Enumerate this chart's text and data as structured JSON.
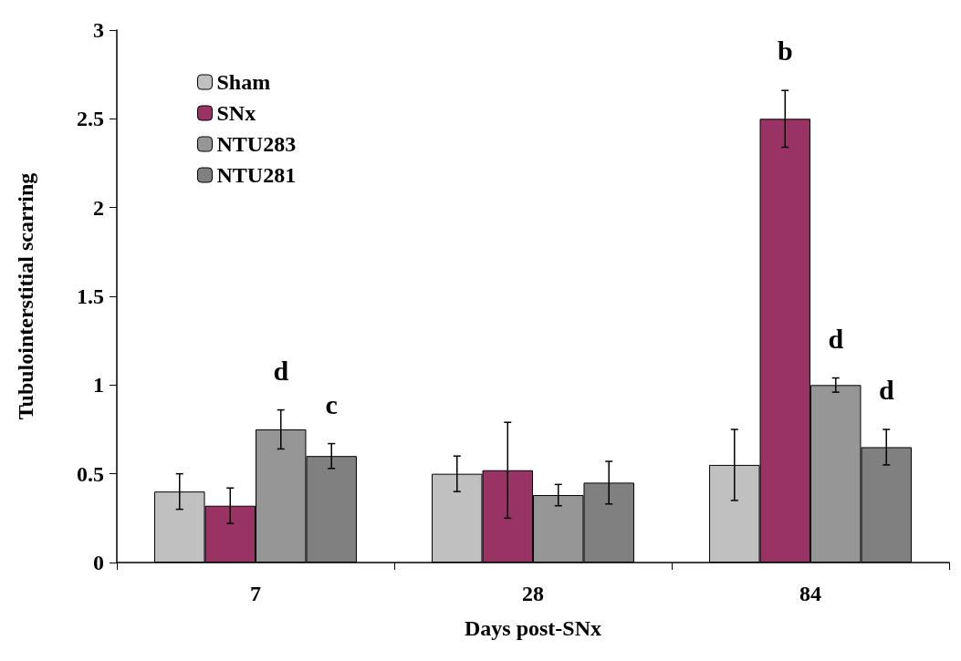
{
  "chart_data": {
    "type": "bar",
    "xlabel": "Days post-SNx",
    "ylabel": "Tubulointerstitial scarring",
    "categories": [
      "7",
      "28",
      "84"
    ],
    "series": [
      {
        "name": "Sham",
        "color": "#c0c0c0",
        "values": [
          0.4,
          0.5,
          0.55
        ],
        "errors": [
          0.1,
          0.1,
          0.2
        ]
      },
      {
        "name": "SNx",
        "color": "#993366",
        "values": [
          0.32,
          0.52,
          2.5
        ],
        "errors": [
          0.1,
          0.27,
          0.16
        ],
        "value_labels": [
          null,
          null,
          "b"
        ]
      },
      {
        "name": "NTU283",
        "color": "#969696",
        "values": [
          0.75,
          0.38,
          1.0
        ],
        "errors": [
          0.11,
          0.06,
          0.04
        ],
        "value_labels": [
          "d",
          null,
          "d"
        ]
      },
      {
        "name": "NTU281",
        "color": "#808080",
        "values": [
          0.6,
          0.45,
          0.65
        ],
        "errors": [
          0.07,
          0.12,
          0.1
        ],
        "value_labels": [
          "c",
          null,
          "d"
        ]
      }
    ],
    "ylim": [
      0,
      3
    ],
    "yticks": [
      0,
      0.5,
      1,
      1.5,
      2,
      2.5,
      3
    ],
    "grid": false,
    "legend": "top left"
  }
}
